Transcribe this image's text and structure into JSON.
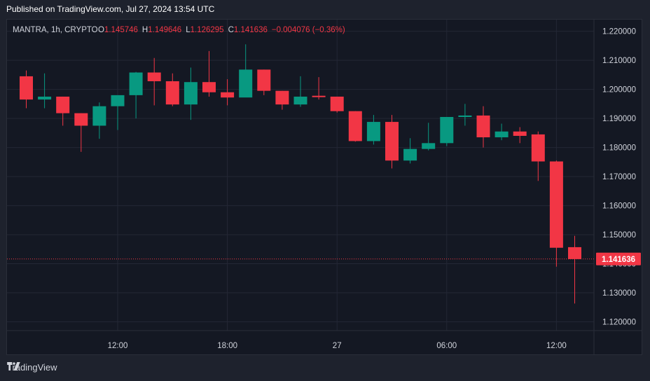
{
  "header": {
    "published": "Published on TradingView.com, Jul 27, 2024 13:54 UTC"
  },
  "legend": {
    "symbol": "MANTRA, 1h, CRYPTO",
    "o_label": "O",
    "o_value": "1.145746",
    "h_label": "H",
    "h_value": "1.149646",
    "l_label": "L",
    "l_value": "1.126295",
    "c_label": "C",
    "c_value": "1.141636",
    "change": "−0.004076 (−0.36%)"
  },
  "footer": {
    "brand": "TradingView"
  },
  "colors": {
    "up": "#089981",
    "down": "#f23645",
    "grid": "#232735",
    "text": "#d1d4dc",
    "background": "#141823"
  },
  "chart_data": {
    "type": "candlestick",
    "interval": "1h",
    "ylim": [
      1.117,
      1.224
    ],
    "y_ticks": [
      "1.220000",
      "1.210000",
      "1.200000",
      "1.190000",
      "1.180000",
      "1.170000",
      "1.160000",
      "1.150000",
      "1.140000",
      "1.130000",
      "1.120000"
    ],
    "x_tick_labels": [
      {
        "label": "12:00",
        "index": 5
      },
      {
        "label": "18:00",
        "index": 11
      },
      {
        "label": "27",
        "index": 17
      },
      {
        "label": "06:00",
        "index": 23
      },
      {
        "label": "12:00",
        "index": 29
      }
    ],
    "last_price": 1.141636,
    "last_price_label": "1.141636",
    "candles": [
      {
        "o": 1.2045,
        "h": 1.2065,
        "l": 1.1935,
        "c": 1.1965
      },
      {
        "o": 1.1965,
        "h": 1.2055,
        "l": 1.1935,
        "c": 1.1975
      },
      {
        "o": 1.1975,
        "h": 1.1975,
        "l": 1.1875,
        "c": 1.1918
      },
      {
        "o": 1.1918,
        "h": 1.1918,
        "l": 1.1785,
        "c": 1.1875
      },
      {
        "o": 1.1875,
        "h": 1.1955,
        "l": 1.183,
        "c": 1.1942
      },
      {
        "o": 1.1942,
        "h": 1.1975,
        "l": 1.186,
        "c": 1.198
      },
      {
        "o": 1.198,
        "h": 1.206,
        "l": 1.19,
        "c": 1.2058
      },
      {
        "o": 1.2058,
        "h": 1.2108,
        "l": 1.1945,
        "c": 1.2028
      },
      {
        "o": 1.2028,
        "h": 1.2055,
        "l": 1.1942,
        "c": 1.1948
      },
      {
        "o": 1.1948,
        "h": 1.2075,
        "l": 1.1895,
        "c": 1.2025
      },
      {
        "o": 1.2025,
        "h": 1.2132,
        "l": 1.1975,
        "c": 1.199
      },
      {
        "o": 1.199,
        "h": 1.2035,
        "l": 1.1945,
        "c": 1.1972
      },
      {
        "o": 1.1972,
        "h": 1.2155,
        "l": 1.1975,
        "c": 1.2068
      },
      {
        "o": 1.2068,
        "h": 1.2068,
        "l": 1.198,
        "c": 1.1995
      },
      {
        "o": 1.1995,
        "h": 1.1995,
        "l": 1.193,
        "c": 1.1948
      },
      {
        "o": 1.1948,
        "h": 1.2045,
        "l": 1.194,
        "c": 1.1975
      },
      {
        "o": 1.1978,
        "h": 1.2042,
        "l": 1.1965,
        "c": 1.1975
      },
      {
        "o": 1.1975,
        "h": 1.1975,
        "l": 1.192,
        "c": 1.1925
      },
      {
        "o": 1.1925,
        "h": 1.1925,
        "l": 1.182,
        "c": 1.1822
      },
      {
        "o": 1.1822,
        "h": 1.1912,
        "l": 1.181,
        "c": 1.1888
      },
      {
        "o": 1.1888,
        "h": 1.1912,
        "l": 1.1728,
        "c": 1.1755
      },
      {
        "o": 1.1755,
        "h": 1.1832,
        "l": 1.1745,
        "c": 1.1795
      },
      {
        "o": 1.1795,
        "h": 1.1885,
        "l": 1.179,
        "c": 1.1815
      },
      {
        "o": 1.1815,
        "h": 1.1905,
        "l": 1.1805,
        "c": 1.1905
      },
      {
        "o": 1.1905,
        "h": 1.195,
        "l": 1.1875,
        "c": 1.191
      },
      {
        "o": 1.191,
        "h": 1.1942,
        "l": 1.18,
        "c": 1.1835
      },
      {
        "o": 1.1835,
        "h": 1.1882,
        "l": 1.1825,
        "c": 1.1855
      },
      {
        "o": 1.1855,
        "h": 1.187,
        "l": 1.1815,
        "c": 1.184
      },
      {
        "o": 1.1845,
        "h": 1.1855,
        "l": 1.1685,
        "c": 1.1752
      },
      {
        "o": 1.1752,
        "h": 1.1755,
        "l": 1.139,
        "c": 1.1455
      },
      {
        "o": 1.1457,
        "h": 1.1496,
        "l": 1.1263,
        "c": 1.1416
      }
    ]
  }
}
